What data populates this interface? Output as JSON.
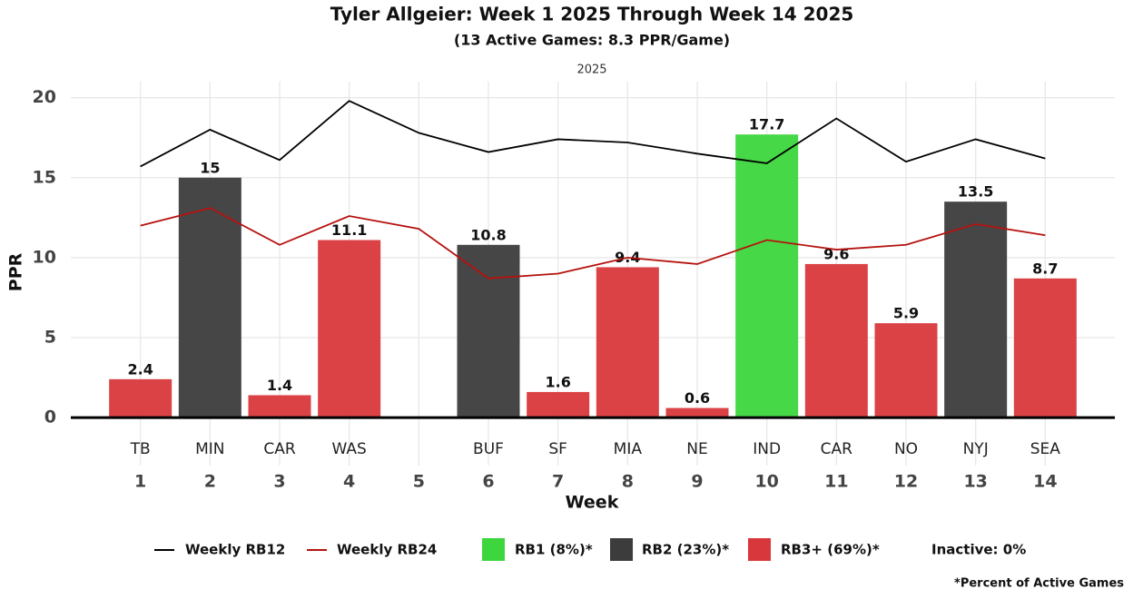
{
  "chart_data": {
    "type": "bar",
    "title": "Tyler Allgeier: Week 1 2025 Through Week 14 2025",
    "subtitle": "(13 Active Games: 8.3 PPR/Game)",
    "facet_label": "2025",
    "x_label": "Week",
    "y_label": "PPR",
    "x": [
      1,
      2,
      3,
      4,
      5,
      6,
      7,
      8,
      9,
      10,
      11,
      12,
      13,
      14
    ],
    "opponents": [
      "TB",
      "MIN",
      "CAR",
      "WAS",
      null,
      "BUF",
      "SF",
      "MIA",
      "NE",
      "IND",
      "CAR",
      "NO",
      "NYJ",
      "SEA"
    ],
    "values": [
      2.4,
      15,
      1.4,
      11.1,
      null,
      10.8,
      1.6,
      9.4,
      0.6,
      17.7,
      9.6,
      5.9,
      13.5,
      8.7
    ],
    "tier": [
      2,
      1,
      2,
      2,
      null,
      1,
      2,
      2,
      2,
      0,
      2,
      2,
      1,
      2
    ],
    "tiers": [
      {
        "name": "RB1 (8%)*",
        "color": "#3dd63d"
      },
      {
        "name": "RB2 (23%)*",
        "color": "#3c3c3c"
      },
      {
        "name": "RB3+ (69%)*",
        "color": "#d8383b"
      }
    ],
    "series": [
      {
        "name": "Weekly RB12",
        "color": "#000000",
        "values": [
          15.7,
          18.0,
          16.1,
          19.8,
          17.8,
          16.6,
          17.4,
          17.2,
          16.5,
          15.9,
          18.7,
          16.0,
          17.4,
          16.2
        ]
      },
      {
        "name": "Weekly RB24",
        "color": "#b5120e",
        "values": [
          12.0,
          13.1,
          10.8,
          12.6,
          11.8,
          8.7,
          9.0,
          10.0,
          9.6,
          11.1,
          10.5,
          10.8,
          12.1,
          11.4
        ]
      }
    ],
    "inactive_label": "Inactive: 0%",
    "footnote": "*Percent of Active Games",
    "xlim": [
      0,
      15
    ],
    "xticks": [
      1,
      2,
      3,
      4,
      5,
      6,
      7,
      8,
      9,
      10,
      11,
      12,
      13,
      14
    ],
    "ylim": [
      -3,
      21
    ],
    "yticks": [
      0,
      5,
      10,
      15,
      20
    ],
    "grid": true
  }
}
